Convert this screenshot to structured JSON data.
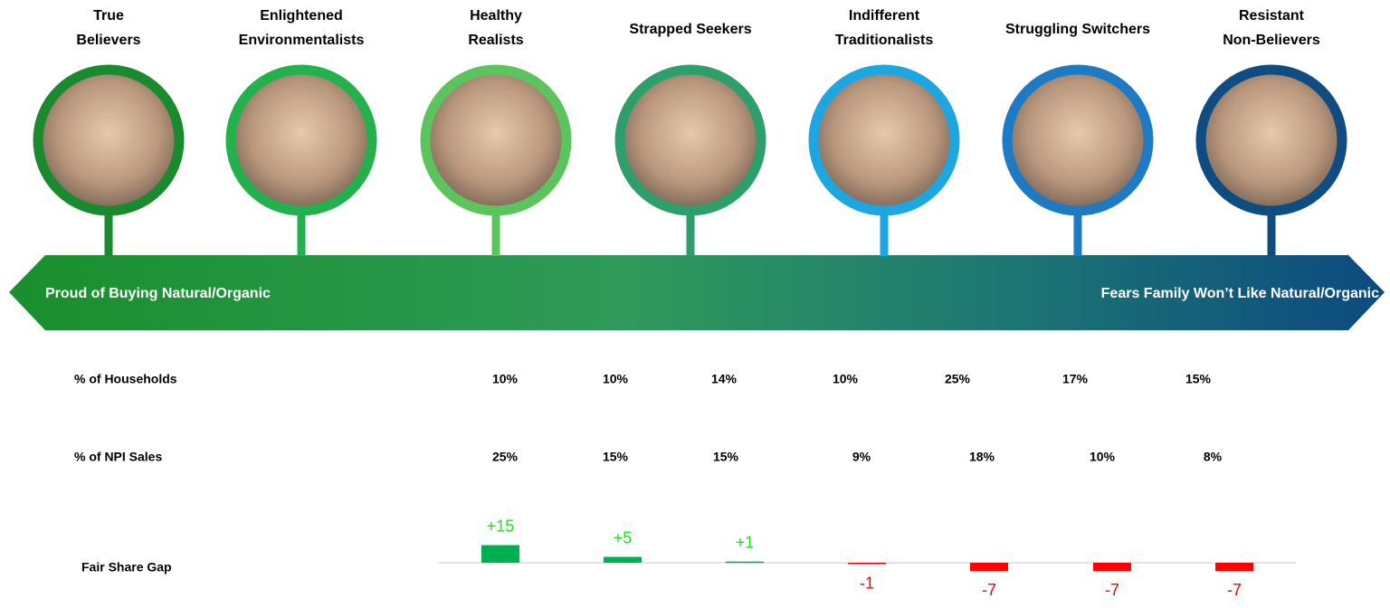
{
  "segments": [
    {
      "name": [
        "True",
        "Believers"
      ]
    },
    {
      "name": [
        "Enlightened",
        "Environmentalists"
      ]
    },
    {
      "name": [
        "Healthy",
        "Realists"
      ]
    },
    {
      "name": [
        "Strapped Seekers"
      ]
    },
    {
      "name": [
        "Indifferent",
        "Traditionalists"
      ]
    },
    {
      "name": [
        "Struggling Switchers"
      ]
    },
    {
      "name": [
        "Resistant",
        "Non-Believers"
      ]
    }
  ],
  "arrow": {
    "left_label": "Proud of Buying Natural/Organic",
    "right_label": "Fears Family Won’t Like Natural/Organic"
  },
  "table": {
    "rows": [
      {
        "label": "% of Households",
        "values": [
          "10%",
          "10%",
          "14%",
          "10%",
          "25%",
          "17%",
          "15%"
        ]
      },
      {
        "label": "% of NPI Sales",
        "values": [
          "25%",
          "15%",
          "15%",
          "9%",
          "18%",
          "10%",
          "8%"
        ]
      }
    ]
  },
  "gap": {
    "label": "Fair Share Gap",
    "values": [
      15,
      5,
      1,
      -1,
      -7,
      -7,
      -7
    ],
    "value_labels": [
      "+15",
      "+5",
      "+1",
      "-1",
      "-7",
      "-7",
      "-7"
    ],
    "positive_color": "#00b050",
    "negative_color": "#ff0000"
  }
}
